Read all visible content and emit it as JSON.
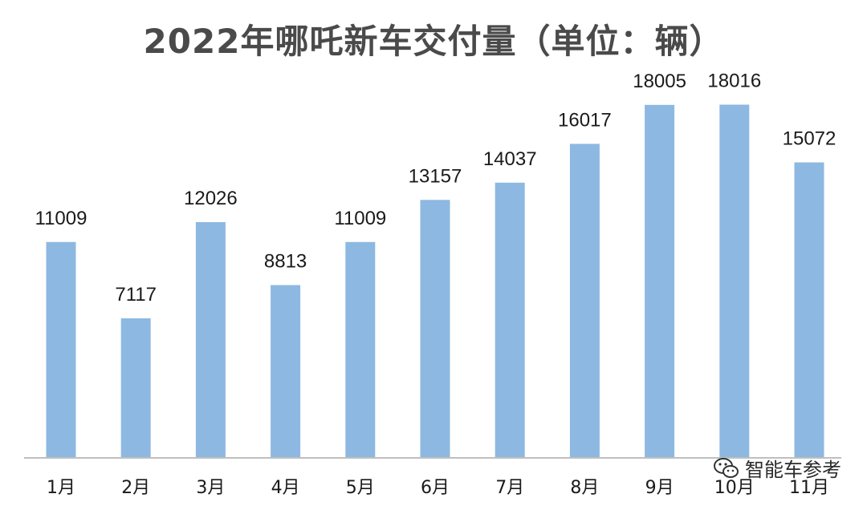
{
  "chart_data": {
    "type": "bar",
    "title": "2022年哪吒新车交付量（单位：辆）",
    "categories": [
      "1月",
      "2月",
      "3月",
      "4月",
      "5月",
      "6月",
      "7月",
      "8月",
      "9月",
      "10月",
      "11月"
    ],
    "values": [
      11009,
      7117,
      12026,
      8813,
      11009,
      13157,
      14037,
      16017,
      18005,
      18016,
      15072
    ],
    "ylim": [
      0,
      20000
    ],
    "grid": false,
    "bar_color": "#8db8e1"
  },
  "watermark": {
    "text": "智能车参考",
    "icon": "wechat-icon"
  }
}
